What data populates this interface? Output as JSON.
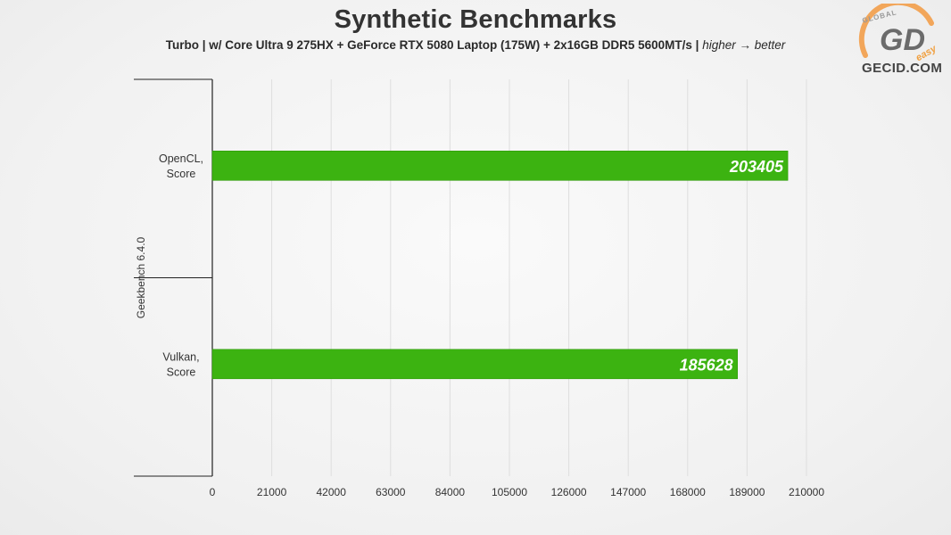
{
  "title": "Synthetic Benchmarks",
  "subtitle": {
    "main": "Turbo | w/ Core Ultra 9 275HX + GeForce RTX 5080 Laptop (175W) + 2x16GB DDR5 5600MT/s |",
    "note": "higher → better"
  },
  "logo": {
    "ring_text": "GLOBAL",
    "mark": "GD",
    "tag": "easy",
    "site": "GECID.COM"
  },
  "chart_data": {
    "type": "bar",
    "orientation": "horizontal",
    "group_label": "Geekbench 6.4.0",
    "categories": [
      "OpenCL,\nScore",
      "Vulkan,\nScore"
    ],
    "values": [
      203405,
      185628
    ],
    "xlim": [
      0,
      210000
    ],
    "xticks": [
      0,
      21000,
      42000,
      63000,
      84000,
      105000,
      126000,
      147000,
      168000,
      189000,
      210000
    ],
    "grid": true,
    "bar_color": "#3cb311",
    "label_color": "#ffffff"
  }
}
